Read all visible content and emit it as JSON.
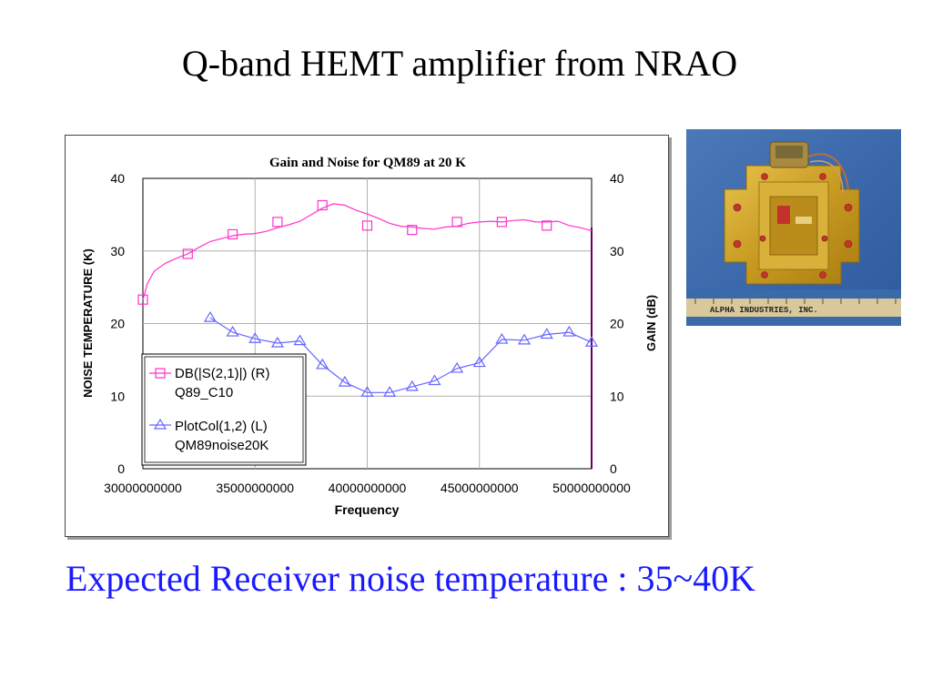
{
  "slide": {
    "title": "Q-band HEMT amplifier from NRAO",
    "footer": "Expected Receiver noise temperature : 35~40K"
  },
  "colors": {
    "gain": "#ff33cc",
    "noise": "#6666ff",
    "footer": "#1a1aff",
    "right_border": "#660066"
  },
  "photo": {
    "description_icon": "hemt-amplifier-module-photo",
    "ruler_text": "ALPHA INDUSTRIES, INC."
  },
  "chart_data": {
    "type": "line",
    "title": "Gain and Noise for QM89 at 20 K",
    "xlabel": "Frequency",
    "ylabel_left": "NOISE TEMPERATURE (K)",
    "ylabel_right": "GAIN (dB)",
    "xlim": [
      30000000000,
      50000000000
    ],
    "ylim_left": [
      0,
      40
    ],
    "ylim_right": [
      0,
      40
    ],
    "x_ticks": [
      "30000000000",
      "35000000000",
      "40000000000",
      "45000000000",
      "50000000000"
    ],
    "y_ticks_left": [
      "0",
      "10",
      "20",
      "30",
      "40"
    ],
    "y_ticks_right": [
      "0",
      "10",
      "20",
      "30",
      "40"
    ],
    "grid": true,
    "legend_placement": "bottom-left",
    "series": [
      {
        "name": "DB(|S(2,1)|) (R)",
        "name2": "Q89_C10",
        "axis": "right",
        "marker": "square",
        "x": [
          30000000000,
          30200000000,
          30500000000,
          31000000000,
          31500000000,
          32000000000,
          32500000000,
          33000000000,
          33500000000,
          34000000000,
          34500000000,
          35000000000,
          35500000000,
          36000000000,
          36500000000,
          37000000000,
          37500000000,
          38000000000,
          38500000000,
          39000000000,
          39500000000,
          40000000000,
          40500000000,
          41000000000,
          41500000000,
          42000000000,
          42500000000,
          43000000000,
          43500000000,
          44000000000,
          44500000000,
          45000000000,
          45500000000,
          46000000000,
          46500000000,
          47000000000,
          47500000000,
          48000000000,
          48500000000,
          49000000000,
          49500000000,
          50000000000
        ],
        "y": [
          23.3,
          25.5,
          27.2,
          28.3,
          29.0,
          29.6,
          30.5,
          31.3,
          31.7,
          32.1,
          32.3,
          32.4,
          32.7,
          33.2,
          33.6,
          34.1,
          35.0,
          35.9,
          36.5,
          36.3,
          35.6,
          35.1,
          34.5,
          33.8,
          33.4,
          33.3,
          33.1,
          33.0,
          33.3,
          33.4,
          33.8,
          34.0,
          34.1,
          34.0,
          34.2,
          34.3,
          34.0,
          34.0,
          34.1,
          33.5,
          33.2,
          32.8
        ],
        "marker_x": [
          30000000000,
          32000000000,
          34000000000,
          36000000000,
          38000000000,
          40000000000,
          42000000000,
          44000000000,
          46000000000,
          48000000000
        ],
        "marker_y": [
          23.3,
          29.6,
          32.3,
          34.0,
          36.3,
          33.5,
          32.9,
          34.0,
          34.0,
          33.5
        ]
      },
      {
        "name": "PlotCol(1,2) (L)",
        "name2": "QM89noise20K",
        "axis": "left",
        "marker": "triangle",
        "x": [
          33000000000,
          34000000000,
          35000000000,
          36000000000,
          37000000000,
          38000000000,
          39000000000,
          40000000000,
          41000000000,
          42000000000,
          43000000000,
          44000000000,
          45000000000,
          46000000000,
          47000000000,
          48000000000,
          49000000000,
          50000000000
        ],
        "y": [
          20.8,
          18.8,
          17.9,
          17.3,
          17.6,
          14.3,
          11.9,
          10.5,
          10.5,
          11.3,
          12.1,
          13.8,
          14.6,
          17.8,
          17.7,
          18.5,
          18.8,
          17.4
        ]
      }
    ]
  }
}
